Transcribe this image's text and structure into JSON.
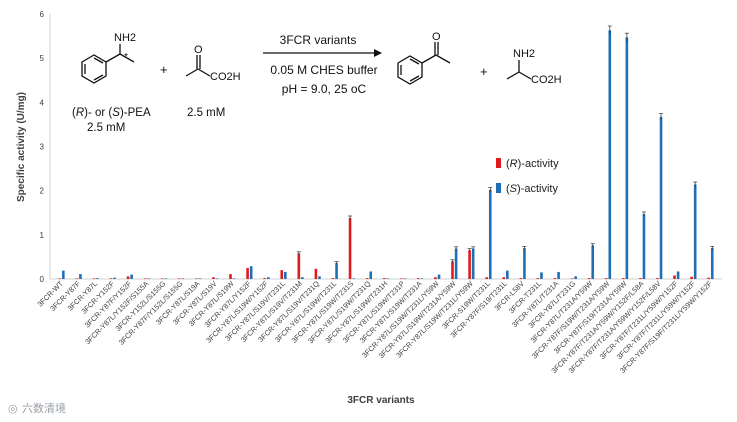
{
  "chart_data": {
    "type": "bar",
    "title": "",
    "xlabel": "3FCR variants",
    "ylabel": "Specific activity (U/mg)",
    "ylim": [
      0,
      6
    ],
    "yticks": [
      "0",
      "1",
      "2",
      "3",
      "4",
      "5",
      "6"
    ],
    "grid": false,
    "legend_position": "right",
    "categories": [
      "3FCR-WT",
      "3FCR-Y87F",
      "3FCR-Y87L",
      "3FCR-Y152F",
      "3FCR-Y87F/Y152F",
      "3FCR-Y87L/Y152F/S155A",
      "3FCR-Y152L/S155G",
      "3FCR-Y87F/Y152L/S155G",
      "3FCR-Y87L/S19A",
      "3FCR-Y87L/S19V",
      "3FCR-Y87L/S19W",
      "3FCR-Y87L/Y152F",
      "3FCR-Y87L/S19W/Y152F",
      "3FCR-Y87L/S19V/T231L",
      "3FCR-Y87L/S19V/T231M",
      "3FCR-Y87L/S19V/T231Q",
      "3FCR-Y87L/S19W/T231L",
      "3FCR-Y87L/S19W/T231S",
      "3FCR-Y87L/S19W/T231Q",
      "3FCR-Y87L/S19W/T231H",
      "3FCR-Y87L/S19W/T231P",
      "3FCR-Y87L/S19W/T231A",
      "3FCR-Y87L/S19W/T231L/Y59W",
      "3FCR-Y87L/S19W/T231A/Y59W",
      "3FCR-Y87L/S19W/T231L/Y59W",
      "3FCR-S19W/T231L",
      "3FCR-Y87F/S19/T231L",
      "3FCR-L58V",
      "3FCR-T231L",
      "3FCR-Y87L/T231A",
      "3FCR-Y87L/T231G",
      "3FCR-Y87L/T231A/Y59W",
      "3FCR-Y87F/S19W/T231A/Y59W",
      "3FCR-Y87F/S19/T231A/Y59W",
      "3FCR-Y87F/T231A/Y59W/Y152F/L58A",
      "3FCR-Y87F/T231A/Y59W/Y152F/L58V",
      "3FCR-Y87F/T231L/Y59W/Y152F",
      "3FCR-Y87F/T231L/Y59W/Y152F",
      "3FCR-Y87F/S19F/T231L/Y59W/Y152F"
    ],
    "series": [
      {
        "name": "(R)-activity",
        "color": "#e31a1c",
        "values": [
          0.005,
          0.01,
          0.01,
          0.015,
          0.06,
          0.01,
          0.005,
          0.005,
          0.005,
          0.04,
          0.11,
          0.25,
          0.02,
          0.2,
          0.58,
          0.23,
          0.02,
          1.38,
          0.02,
          0.02,
          0.01,
          0.02,
          0.04,
          0.4,
          0.65,
          0.04,
          0.04,
          0.02,
          0.02,
          0.02,
          0.01,
          0.02,
          0.02,
          0.02,
          0.02,
          0.02,
          0.08,
          0.05,
          0.03
        ]
      },
      {
        "name": "(S)-activity",
        "color": "#1f6fb5",
        "values": [
          0.19,
          0.11,
          0.02,
          0.03,
          0.1,
          0.005,
          0.005,
          0.005,
          0.005,
          0.005,
          0.01,
          0.29,
          0.04,
          0.16,
          0.04,
          0.06,
          0.36,
          0.005,
          0.17,
          0.005,
          0.005,
          0.005,
          0.1,
          0.69,
          0.69,
          2.02,
          0.19,
          0.7,
          0.15,
          0.16,
          0.06,
          0.76,
          5.63,
          5.47,
          1.47,
          3.67,
          0.17,
          2.14,
          0.7
        ]
      }
    ]
  },
  "legend": {
    "r_prefix": "(",
    "r_letter": "R",
    "r_suffix": ")-activity",
    "s_prefix": "(",
    "s_letter": "S",
    "s_suffix": ")-activity"
  },
  "reaction": {
    "nh2": "NH2",
    "star": "*",
    "substrate_prefix": "(",
    "substrate_r": "R",
    "substrate_mid": ")- or (",
    "substrate_s": "S",
    "substrate_suffix": ")-PEA",
    "substrate_conc": "2.5 mM",
    "plus1": "+",
    "pyruvate_co2h": "CO2H",
    "pyruvate_conc": "2.5 mM",
    "arrow_label": "3FCR variants",
    "buffer": "0.05 M CHES buffer",
    "conditions": "pH = 9.0, 25 oC",
    "plus2": "+",
    "product_nh2": "NH2",
    "product_co2h": "CO2H"
  },
  "watermark": "六数清境"
}
